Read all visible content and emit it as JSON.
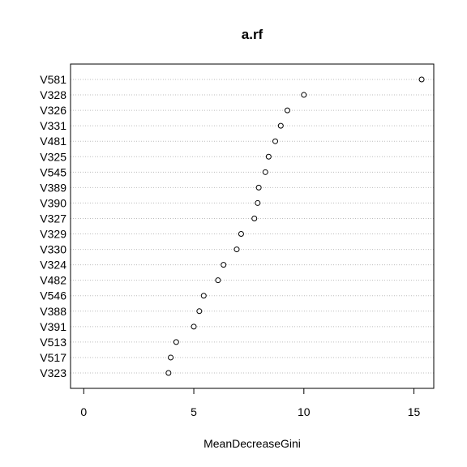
{
  "chart_data": {
    "type": "scatter",
    "title": "a.rf",
    "xlabel": "MeanDecreaseGini",
    "ylabel": "",
    "xlim": [
      -0.6,
      15.9
    ],
    "xticks": [
      0,
      5,
      10,
      15
    ],
    "grid": "horizontal-dotted",
    "categories": [
      "V581",
      "V328",
      "V326",
      "V331",
      "V481",
      "V325",
      "V545",
      "V389",
      "V390",
      "V327",
      "V329",
      "V330",
      "V324",
      "V482",
      "V546",
      "V388",
      "V391",
      "V513",
      "V517",
      "V323"
    ],
    "values": [
      15.35,
      10.0,
      9.25,
      8.95,
      8.7,
      8.4,
      8.25,
      7.95,
      7.9,
      7.75,
      7.15,
      6.95,
      6.35,
      6.1,
      5.45,
      5.25,
      5.0,
      4.2,
      3.95,
      3.85
    ]
  }
}
